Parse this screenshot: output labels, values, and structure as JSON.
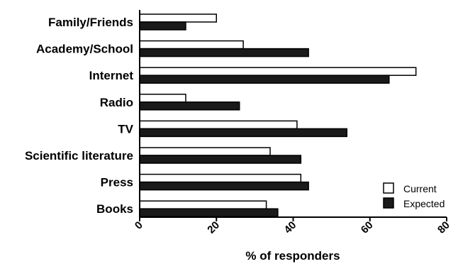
{
  "chart_data": {
    "type": "bar",
    "orientation": "horizontal",
    "categories": [
      "Family/Friends",
      "Academy/School",
      "Internet",
      "Radio",
      "TV",
      "Scientific literature",
      "Press",
      "Books"
    ],
    "series": [
      {
        "name": "Current",
        "values": [
          20,
          27,
          72,
          12,
          41,
          34,
          42,
          33
        ],
        "color": "#ffffff"
      },
      {
        "name": "Expected",
        "values": [
          12,
          44,
          65,
          26,
          54,
          42,
          44,
          36
        ],
        "color": "#1a1a1a"
      }
    ],
    "xlabel": "% of responders",
    "ylabel": "",
    "xlim": [
      0,
      80
    ],
    "xticks": [
      "0",
      "20",
      "40",
      "60",
      "80"
    ],
    "grid": false,
    "legend_position": "bottom-right"
  }
}
